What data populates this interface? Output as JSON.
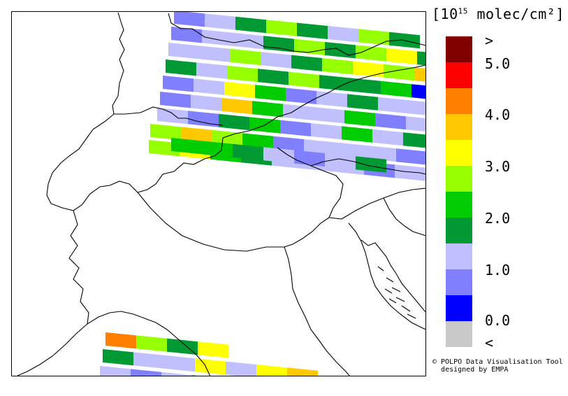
{
  "legend": {
    "unit_prefix": "10",
    "unit_exponent": "15",
    "unit_suffix": "molec/cm²",
    "bracket_open": "[",
    "bracket_close": "]",
    "colors": [
      "#800000",
      "#ff0000",
      "#ff8000",
      "#ffc800",
      "#ffff00",
      "#96ff00",
      "#00cc00",
      "#009933",
      "#c0c0ff",
      "#8080ff",
      "#0000ff",
      "#c8c8c8"
    ],
    "tick_labels": [
      ">",
      "5.0",
      "4.0",
      "3.0",
      "2.0",
      "1.0",
      "0.0",
      "<"
    ]
  },
  "credit": {
    "line1": "© POLPO Data Visualisation Tool",
    "line2": "designed by EMPA"
  },
  "swaths": [
    [
      "#8080ff",
      "#c0c0ff",
      "#009933",
      "#96ff00",
      "#009933",
      "#c0c0ff",
      "#96ff00",
      "#009933"
    ],
    [
      "#8080ff",
      "#c0c0ff",
      "#c0c0ff",
      "#009933",
      "#96ff00",
      "#009933",
      "#96ff00",
      "#ffff00",
      "#009933"
    ],
    [
      "#c0c0ff",
      "#c0c0ff",
      "#96ff00",
      "#c0c0ff",
      "#009933",
      "#96ff00",
      "#ffff00",
      "#96ff00",
      "#ffc800"
    ],
    [
      "#009933",
      "#c0c0ff",
      "#96ff00",
      "#009933",
      "#96ff00",
      "#009933",
      "#009933",
      "#00cc00",
      "#0000ff"
    ],
    [
      "#8080ff",
      "#c0c0ff",
      "#ffff00",
      "#00cc00",
      "#8080ff",
      "#c0c0ff",
      "#009933",
      "#c0c0ff",
      "#c0c0ff"
    ],
    [
      "#8080ff",
      "#c0c0ff",
      "#ffc800",
      "#00cc00",
      "#c0c0ff",
      "#c0c0ff",
      "#00cc00",
      "#8080ff",
      "#c0c0ff"
    ],
    [
      "#c0c0ff",
      "#8080ff",
      "#009933",
      "#00cc00",
      "#8080ff",
      "#c0c0ff",
      "#00cc00",
      "#c0c0ff",
      "#009933"
    ],
    [
      "#96ff00",
      "#ffc800",
      "#96ff00",
      "#00cc00",
      "#8080ff",
      "#c0c0ff",
      "#c0c0ff",
      "#c0c0ff",
      "#8080ff"
    ],
    [
      "#96ff00",
      "#ffff00",
      "#00cc00",
      "#009933",
      "#c0c0ff",
      "#c0c0ff",
      "#c0c0ff",
      "#8080ff",
      "#c0c0ff"
    ],
    [
      "#00cc00",
      "#00cc00",
      "#009933",
      "#c0c0ff",
      "#8080ff",
      "#c0c0ff",
      "#009933"
    ]
  ],
  "bottom_swaths": [
    [
      "#ff8000",
      "#96ff00",
      "#009933",
      "#ffff00"
    ],
    [
      "#009933",
      "#c0c0ff",
      "#c0c0ff",
      "#ffff00",
      "#c0c0ff",
      "#ffff00",
      "#ffc800"
    ],
    [
      "#c0c0ff",
      "#8080ff",
      "#c0c0ff",
      "#009933",
      "#009933",
      "#009933",
      "#00cc00"
    ]
  ]
}
